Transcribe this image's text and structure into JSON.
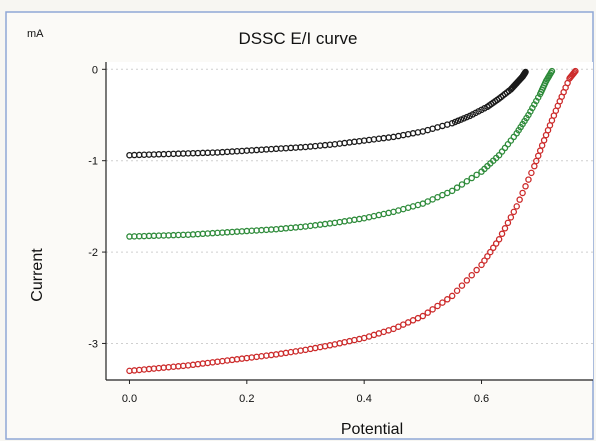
{
  "chart_data": {
    "type": "scatter",
    "title": "DSSC E/I curve",
    "unit_label": "mA",
    "xlabel": "Potential",
    "ylabel": "Current",
    "xlim": [
      -0.04,
      0.79
    ],
    "ylim": [
      -3.4,
      0.08
    ],
    "x_ticks": [
      0.0,
      0.2,
      0.4,
      0.6
    ],
    "x_tick_labels": [
      "0.0",
      "0.2",
      "0.4",
      "0.6"
    ],
    "y_ticks": [
      0,
      -1,
      -2,
      -3
    ],
    "y_tick_labels": [
      "0",
      "-1",
      "-2",
      "-3"
    ],
    "grid": true,
    "legend": "none",
    "series": [
      {
        "color": "#1a1a1a",
        "x": [
          0.0,
          0.05,
          0.1,
          0.15,
          0.2,
          0.25,
          0.3,
          0.35,
          0.4,
          0.45,
          0.5,
          0.55,
          0.58,
          0.61,
          0.63,
          0.65,
          0.66,
          0.67,
          0.675
        ],
        "y": [
          -0.94,
          -0.93,
          -0.92,
          -0.91,
          -0.89,
          -0.87,
          -0.85,
          -0.82,
          -0.78,
          -0.74,
          -0.68,
          -0.59,
          -0.51,
          -0.41,
          -0.32,
          -0.22,
          -0.15,
          -0.08,
          -0.03
        ]
      },
      {
        "color": "#2e8b3a",
        "x": [
          0.0,
          0.05,
          0.1,
          0.15,
          0.2,
          0.25,
          0.3,
          0.35,
          0.4,
          0.45,
          0.5,
          0.55,
          0.6,
          0.63,
          0.66,
          0.68,
          0.7,
          0.71,
          0.72
        ],
        "y": [
          -1.83,
          -1.82,
          -1.81,
          -1.79,
          -1.77,
          -1.75,
          -1.72,
          -1.68,
          -1.63,
          -1.56,
          -1.47,
          -1.33,
          -1.12,
          -0.94,
          -0.7,
          -0.5,
          -0.27,
          -0.13,
          -0.02
        ]
      },
      {
        "color": "#cc2a2a",
        "x": [
          0.0,
          0.05,
          0.1,
          0.15,
          0.2,
          0.25,
          0.3,
          0.35,
          0.4,
          0.45,
          0.5,
          0.55,
          0.6,
          0.63,
          0.66,
          0.69,
          0.71,
          0.73,
          0.75,
          0.76
        ],
        "y": [
          -3.3,
          -3.27,
          -3.24,
          -3.2,
          -3.16,
          -3.12,
          -3.07,
          -3.01,
          -2.94,
          -2.84,
          -2.7,
          -2.48,
          -2.14,
          -1.86,
          -1.5,
          -1.06,
          -0.72,
          -0.4,
          -0.1,
          -0.02
        ]
      }
    ]
  }
}
